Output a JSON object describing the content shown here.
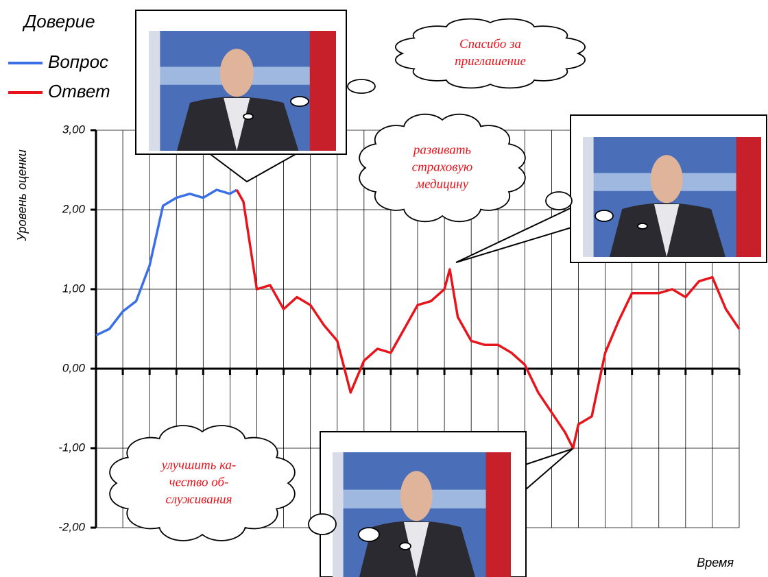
{
  "chart_data": {
    "type": "line",
    "legend_title": "Доверие",
    "y_label": "Уровень оценки",
    "x_label": "Время",
    "xlim": [
      0,
      24
    ],
    "xticks": [
      0,
      1,
      2,
      3,
      4,
      5,
      6,
      7,
      8,
      9,
      10,
      11,
      12,
      13,
      14,
      15,
      16,
      17,
      18,
      19,
      20,
      21,
      22,
      23,
      24
    ],
    "ylim": [
      -2,
      3
    ],
    "yticks": [
      {
        "value": 3,
        "label": "3,00"
      },
      {
        "value": 2,
        "label": "2,00"
      },
      {
        "value": 1,
        "label": "1,00"
      },
      {
        "value": 0,
        "label": "0,00"
      },
      {
        "value": -1,
        "label": "-1,00"
      },
      {
        "value": -2,
        "label": "-2,00"
      }
    ],
    "grid": true,
    "series": [
      {
        "name": "Вопрос",
        "color": "#3a6fe8",
        "x": [
          0,
          0.5,
          1,
          1.5,
          2,
          2.5,
          3,
          3.5,
          4,
          4.5,
          5,
          5.25
        ],
        "values": [
          0.42,
          0.5,
          0.72,
          0.85,
          1.3,
          2.05,
          2.15,
          2.2,
          2.15,
          2.25,
          2.2,
          2.25
        ]
      },
      {
        "name": "Ответ",
        "color": "#e8141b",
        "x": [
          5.25,
          5.5,
          6,
          6.5,
          7,
          7.5,
          8,
          8.5,
          9,
          9.5,
          10,
          10.5,
          11,
          11.5,
          12,
          12.5,
          13,
          13.2,
          13.5,
          14,
          14.5,
          15,
          15.5,
          16,
          16.5,
          17,
          17.5,
          17.8,
          18,
          18.5,
          19,
          19.5,
          20,
          20.5,
          21,
          21.5,
          22,
          22.5,
          23,
          23.5,
          24
        ],
        "values": [
          2.25,
          2.1,
          1.0,
          1.05,
          0.75,
          0.9,
          0.8,
          0.55,
          0.35,
          -0.3,
          0.1,
          0.25,
          0.2,
          0.5,
          0.8,
          0.85,
          1.0,
          1.25,
          0.65,
          0.35,
          0.3,
          0.3,
          0.2,
          0.05,
          -0.3,
          -0.55,
          -0.8,
          -1.0,
          -0.7,
          -0.6,
          0.2,
          0.6,
          0.95,
          0.95,
          0.95,
          1.0,
          0.9,
          1.1,
          1.15,
          0.75,
          0.5
        ]
      }
    ],
    "annotations": [
      [
        "Спасибо за",
        "приглашение"
      ],
      [
        "развивать",
        "страховую",
        "медицину"
      ],
      [
        "улучшить ка-",
        "чество об-",
        "служивания"
      ]
    ]
  }
}
